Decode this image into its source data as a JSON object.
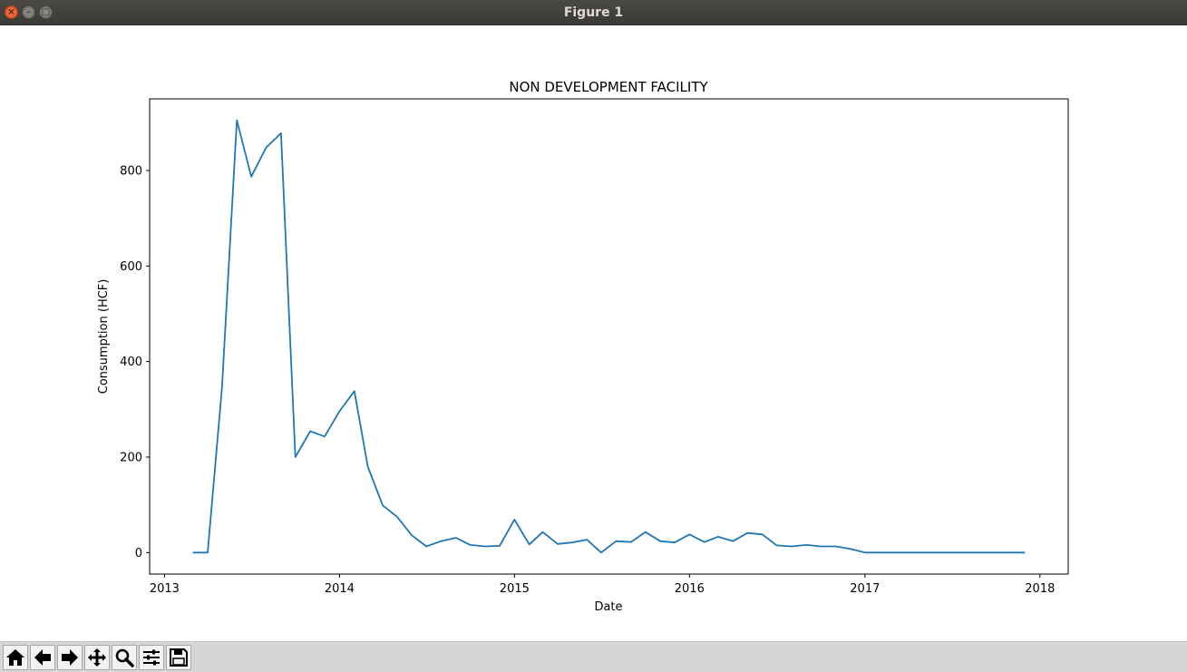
{
  "window": {
    "title": "Figure 1"
  },
  "toolbar": {
    "buttons": [
      {
        "name": "home-button",
        "icon": "home-icon"
      },
      {
        "name": "back-button",
        "icon": "arrow-left-icon"
      },
      {
        "name": "forward-button",
        "icon": "arrow-right-icon"
      },
      {
        "name": "pan-button",
        "icon": "move-icon"
      },
      {
        "name": "zoom-button",
        "icon": "magnifier-icon"
      },
      {
        "name": "configure-subplots-button",
        "icon": "sliders-icon"
      },
      {
        "name": "save-button",
        "icon": "floppy-disk-icon"
      }
    ]
  },
  "chart_data": {
    "type": "line",
    "title": "NON DEVELOPMENT FACILITY",
    "xlabel": "Date",
    "ylabel": "Consumption (HCF)",
    "x_ticks": [
      "2013",
      "2014",
      "2015",
      "2016",
      "2017",
      "2018"
    ],
    "y_ticks": [
      0,
      200,
      400,
      600,
      800
    ],
    "xlim": [
      "2012-12-01",
      "2018-03-01"
    ],
    "ylim": [
      -45,
      950
    ],
    "grid": false,
    "line_color": "#1f77b4",
    "series": [
      {
        "x": [
          "2013-03-01",
          "2013-04-01",
          "2013-05-01",
          "2013-06-01",
          "2013-07-01",
          "2013-08-01",
          "2013-09-01",
          "2013-10-01",
          "2013-11-01",
          "2013-12-01",
          "2014-01-01",
          "2014-02-01",
          "2014-03-01",
          "2014-04-01",
          "2014-05-01",
          "2014-06-01",
          "2014-07-01",
          "2014-08-01",
          "2014-09-01",
          "2014-10-01",
          "2014-11-01",
          "2014-12-01",
          "2015-01-01",
          "2015-02-01",
          "2015-03-01",
          "2015-04-01",
          "2015-05-01",
          "2015-06-01",
          "2015-07-01",
          "2015-08-01",
          "2015-09-01",
          "2015-10-01",
          "2015-11-01",
          "2015-12-01",
          "2016-01-01",
          "2016-02-01",
          "2016-03-01",
          "2016-04-01",
          "2016-05-01",
          "2016-06-01",
          "2016-07-01",
          "2016-08-01",
          "2016-09-01",
          "2016-10-01",
          "2016-11-01",
          "2016-12-01",
          "2017-01-01",
          "2017-02-01",
          "2017-03-01",
          "2017-04-01",
          "2017-05-01",
          "2017-06-01",
          "2017-07-01",
          "2017-08-01",
          "2017-09-01",
          "2017-10-01",
          "2017-11-01",
          "2017-12-01"
        ],
        "y": [
          0,
          0,
          345,
          905,
          787,
          848,
          878,
          200,
          254,
          243,
          296,
          338,
          180,
          99,
          75,
          36,
          13,
          24,
          31,
          16,
          13,
          14,
          69,
          17,
          43,
          18,
          21,
          27,
          0,
          24,
          22,
          43,
          24,
          21,
          38,
          22,
          33,
          24,
          41,
          38,
          15,
          13,
          16,
          13,
          13,
          8,
          0,
          0,
          0,
          0,
          0,
          0,
          0,
          0,
          0,
          0,
          0,
          0
        ]
      }
    ]
  }
}
